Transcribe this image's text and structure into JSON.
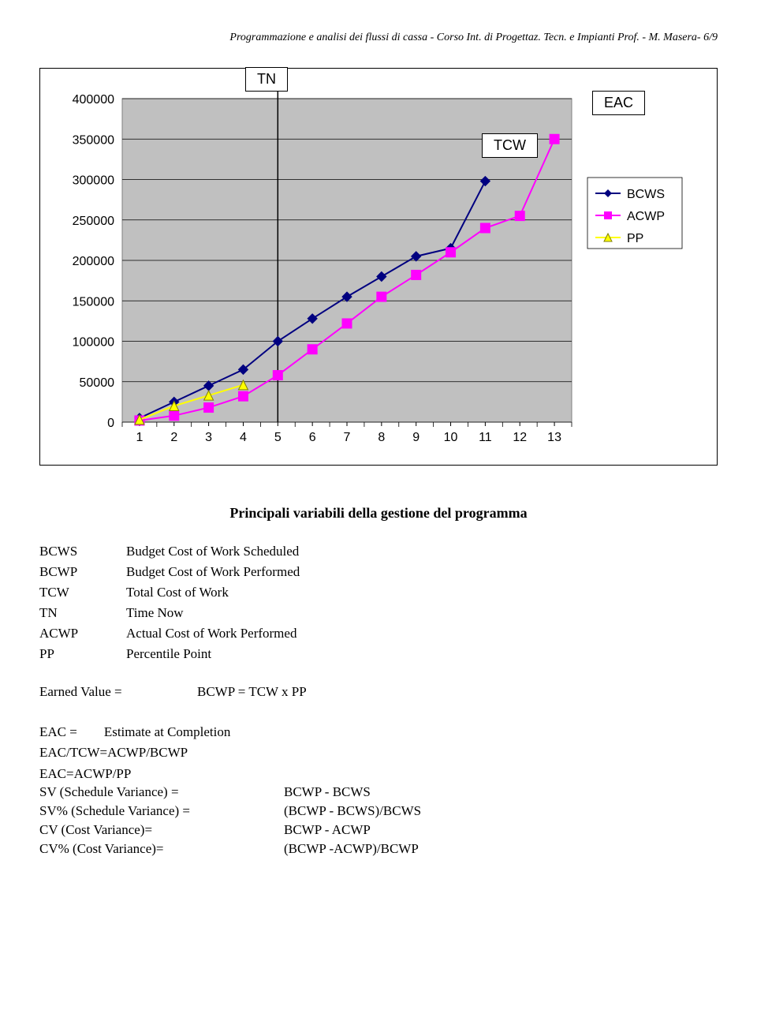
{
  "header": "Programmazione e analisi dei flussi di cassa - Corso Int. di Progettaz. Tecn. e Impianti Prof. - M. Masera- 6/9",
  "chart": {
    "tn_label": "TN",
    "tcw_label": "TCW",
    "eac_label": "EAC",
    "legend": {
      "bcws": "BCWS",
      "acwp": "ACWP",
      "pp": "PP"
    },
    "colors": {
      "bcws_line": "#000080",
      "acwp_line": "#ff00ff",
      "pp_line": "#ffff00",
      "grid": "#000000",
      "plot_bg": "#c0c0c0",
      "chart_border": "#808080",
      "marker_bcws": "#000080",
      "marker_acwp": "#ff00ff",
      "marker_pp": "#ffff00"
    },
    "ylim": [
      0,
      400000
    ],
    "ytick_step": 50000,
    "x_categories": [
      "1",
      "2",
      "3",
      "4",
      "5",
      "6",
      "7",
      "8",
      "9",
      "10",
      "11",
      "12",
      "13"
    ],
    "series": {
      "bcws": [
        5000,
        25000,
        45000,
        65000,
        100000,
        128000,
        155000,
        180000,
        205000,
        215000,
        298000
      ],
      "acwp": [
        2000,
        8000,
        18000,
        32000,
        58000,
        90000,
        122000,
        155000,
        182000,
        210000,
        240000,
        255000,
        350000
      ],
      "pp": [
        3000,
        20000,
        33000,
        46000
      ]
    },
    "tn_vline_x": 5,
    "axis_font": "Arial",
    "axis_fontsize": 16,
    "line_width": 2,
    "marker_size": 6
  },
  "section_title": "Principali variabili della gestione del programma",
  "defs": [
    {
      "k": "BCWS",
      "v": "Budget Cost of Work Scheduled"
    },
    {
      "k": "BCWP",
      "v": "Budget Cost of Work Performed"
    },
    {
      "k": "TCW",
      "v": "Total Cost of Work"
    },
    {
      "k": "TN",
      "v": "Time Now"
    },
    {
      "k": "ACWP",
      "v": "Actual Cost of Work Performed"
    },
    {
      "k": "PP",
      "v": "Percentile Point"
    }
  ],
  "ev": {
    "left": "Earned Value =",
    "right": "BCWP = TCW x PP"
  },
  "eac_lines": [
    "EAC =        Estimate at Completion",
    "EAC/TCW=ACWP/BCWP",
    "EAC=ACWP/PP"
  ],
  "var_grid": [
    {
      "l": "SV (Schedule Variance) =",
      "r": "BCWP - BCWS"
    },
    {
      "l": "SV% (Schedule Variance) =",
      "r": "(BCWP - BCWS)/BCWS"
    },
    {
      "l": "CV (Cost Variance)=",
      "r": "BCWP - ACWP"
    },
    {
      "l": "CV% (Cost Variance)=",
      "r": "(BCWP -ACWP)/BCWP"
    }
  ]
}
